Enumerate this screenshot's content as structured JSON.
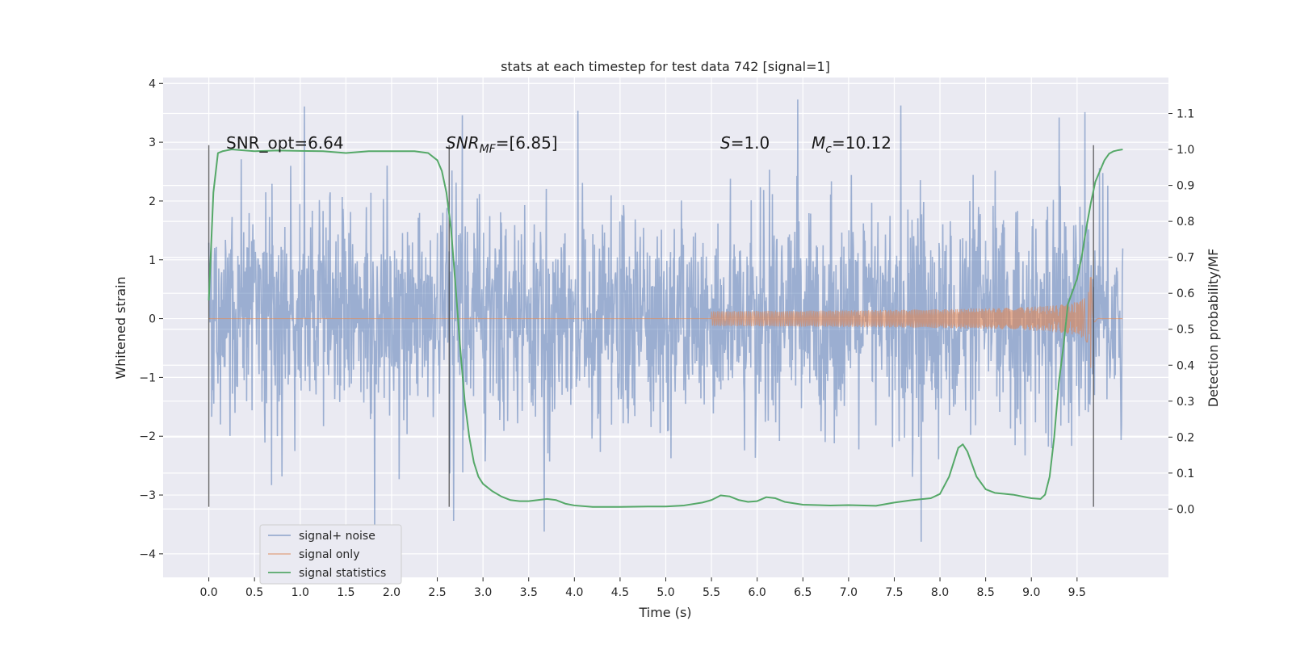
{
  "chart_data": {
    "type": "line",
    "title": "stats at each timestep for test data 742 [signal=1]",
    "xlabel": "Time (s)",
    "ylabel_left": "Whitened strain",
    "ylabel_right": "Detection probability/MF",
    "xlim": [
      -0.5,
      10.5
    ],
    "ylim_left": [
      -4.4,
      4.1
    ],
    "ylim_right": [
      -0.19,
      1.2
    ],
    "xticks": [
      "0.0",
      "0.5",
      "1.0",
      "1.5",
      "2.0",
      "2.5",
      "3.0",
      "3.5",
      "4.0",
      "4.5",
      "5.0",
      "5.5",
      "6.0",
      "6.5",
      "7.0",
      "7.5",
      "8.0",
      "8.5",
      "9.0",
      "9.5"
    ],
    "yticks_left": [
      "4",
      "3",
      "2",
      "1",
      "0",
      "−1",
      "−2",
      "−3",
      "−4"
    ],
    "yticks_right": [
      "1.1",
      "1.0",
      "0.9",
      "0.8",
      "0.7",
      "0.6",
      "0.5",
      "0.4",
      "0.3",
      "0.2",
      "0.1",
      "0.0"
    ],
    "grid": true,
    "legend_position": "lower-left",
    "annotations": {
      "snr_opt": "SNR_opt=6.64",
      "snr_mf_base": "SNR",
      "snr_mf_sub": "MF",
      "snr_mf_value": "=[6.85]",
      "s_sym": "S",
      "s_value": "=1.0",
      "mc_sym": "M",
      "mc_sub": "c",
      "mc_value": "=10.12"
    },
    "vertical_lines_x": [
      0.0,
      2.63,
      9.68
    ],
    "series": [
      {
        "name": "signal+ noise",
        "color": "#4c72b0",
        "t_range": [
          0.0,
          10.0
        ],
        "amplitude_band": [
          -2.6,
          2.7
        ],
        "peak_extremes": [
          -3.8,
          3.75
        ]
      },
      {
        "name": "signal only",
        "color": "#dd8452",
        "chirp": {
          "start_t": 5.5,
          "merger_t": 9.65,
          "peak_amplitude": 0.9,
          "ringdown_end_t": 9.75
        }
      },
      {
        "name": "signal statistics",
        "color": "#55a868",
        "x": [
          0.0,
          0.05,
          0.1,
          0.15,
          0.25,
          0.5,
          0.75,
          1.0,
          1.25,
          1.5,
          1.75,
          2.0,
          2.25,
          2.4,
          2.5,
          2.55,
          2.6,
          2.65,
          2.7,
          2.75,
          2.8,
          2.85,
          2.9,
          2.95,
          3.0,
          3.1,
          3.2,
          3.3,
          3.4,
          3.5,
          3.6,
          3.7,
          3.8,
          3.9,
          4.0,
          4.2,
          4.5,
          4.8,
          5.0,
          5.2,
          5.4,
          5.5,
          5.6,
          5.7,
          5.8,
          5.9,
          6.0,
          6.1,
          6.2,
          6.3,
          6.5,
          6.8,
          7.0,
          7.3,
          7.5,
          7.7,
          7.9,
          8.0,
          8.1,
          8.2,
          8.25,
          8.3,
          8.4,
          8.5,
          8.6,
          8.8,
          9.0,
          9.1,
          9.15,
          9.2,
          9.25,
          9.3,
          9.35,
          9.4,
          9.5,
          9.55,
          9.6,
          9.65,
          9.7,
          9.75,
          9.8,
          9.85,
          9.9,
          9.95,
          10.0
        ],
        "values": [
          0.58,
          0.88,
          0.99,
          0.995,
          1.0,
          0.995,
          0.997,
          0.996,
          0.995,
          0.99,
          0.995,
          0.995,
          0.995,
          0.99,
          0.97,
          0.94,
          0.88,
          0.78,
          0.62,
          0.45,
          0.3,
          0.2,
          0.13,
          0.09,
          0.07,
          0.05,
          0.035,
          0.025,
          0.022,
          0.022,
          0.025,
          0.028,
          0.025,
          0.015,
          0.01,
          0.006,
          0.006,
          0.007,
          0.007,
          0.01,
          0.018,
          0.025,
          0.038,
          0.035,
          0.025,
          0.02,
          0.022,
          0.033,
          0.03,
          0.02,
          0.012,
          0.01,
          0.011,
          0.009,
          0.018,
          0.025,
          0.03,
          0.042,
          0.09,
          0.17,
          0.18,
          0.16,
          0.09,
          0.055,
          0.045,
          0.04,
          0.03,
          0.028,
          0.04,
          0.09,
          0.2,
          0.35,
          0.45,
          0.57,
          0.64,
          0.7,
          0.78,
          0.85,
          0.91,
          0.94,
          0.97,
          0.988,
          0.995,
          0.998,
          1.0
        ]
      }
    ]
  }
}
